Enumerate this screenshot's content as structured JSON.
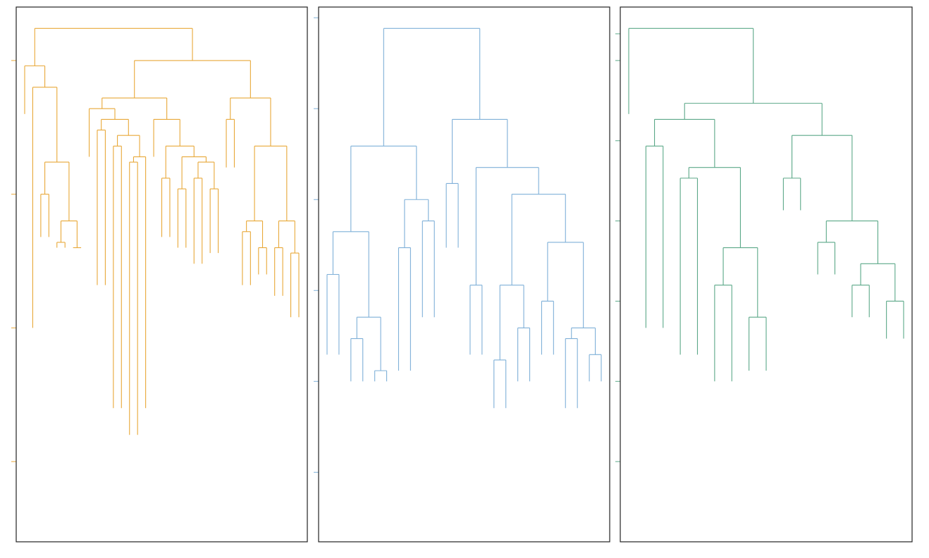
{
  "chart_data": [
    {
      "type": "dendrogram",
      "panel": 1,
      "color": "#E8A838",
      "title": "",
      "ylim": [
        0,
        1
      ],
      "y_ticks": [
        0.15,
        0.4,
        0.65,
        0.9
      ],
      "tick_labels_visible": false,
      "root": {
        "h": 0.96,
        "c": [
          {
            "h": 0.89,
            "c": [
              {
                "l": 0.8
              },
              {
                "h": 0.85,
                "c": [
                  {
                    "l": 0.4
                  },
                  {
                    "h": 0.71,
                    "c": [
                      {
                        "h": 0.65,
                        "c": [
                          {
                            "l": 0.57
                          },
                          {
                            "l": 0.57
                          }
                        ]
                      },
                      {
                        "h": 0.6,
                        "c": [
                          {
                            "h": 0.56,
                            "c": [
                              {
                                "l": 0.55
                              },
                              {
                                "l": 0.55
                              }
                            ]
                          },
                          {
                            "h": 0.55,
                            "c": [
                              {
                                "l": 0.55
                              },
                              {
                                "l": 0.55
                              }
                            ]
                          }
                        ]
                      }
                    ]
                  }
                ]
              }
            ]
          },
          {
            "h": 0.9,
            "c": [
              {
                "h": 0.83,
                "c": [
                  {
                    "h": 0.81,
                    "c": [
                      {
                        "l": 0.72
                      },
                      {
                        "h": 0.79,
                        "c": [
                          {
                            "h": 0.77,
                            "c": [
                              {
                                "l": 0.48
                              },
                              {
                                "l": 0.48
                              }
                            ]
                          },
                          {
                            "h": 0.76,
                            "c": [
                              {
                                "h": 0.74,
                                "c": [
                                  {
                                    "l": 0.25
                                  },
                                  {
                                    "l": 0.25
                                  }
                                ]
                              },
                              {
                                "h": 0.72,
                                "c": [
                                  {
                                    "h": 0.71,
                                    "c": [
                                      {
                                        "l": 0.2
                                      },
                                      {
                                        "l": 0.2
                                      }
                                    ]
                                  },
                                  {
                                    "l": 0.25
                                  }
                                ]
                              }
                            ]
                          }
                        ]
                      }
                    ]
                  },
                  {
                    "h": 0.79,
                    "c": [
                      {
                        "l": 0.72
                      },
                      {
                        "h": 0.74,
                        "c": [
                          {
                            "h": 0.68,
                            "c": [
                              {
                                "l": 0.57
                              },
                              {
                                "l": 0.57
                              }
                            ]
                          },
                          {
                            "h": 0.72,
                            "c": [
                              {
                                "h": 0.66,
                                "c": [
                                  {
                                    "l": 0.55
                                  },
                                  {
                                    "l": 0.55
                                  }
                                ]
                              },
                              {
                                "h": 0.71,
                                "c": [
                                  {
                                    "h": 0.68,
                                    "c": [
                                      {
                                        "l": 0.52
                                      },
                                      {
                                        "l": 0.52
                                      }
                                    ]
                                  },
                                  {
                                    "h": 0.66,
                                    "c": [
                                      {
                                        "l": 0.54
                                      },
                                      {
                                        "l": 0.54
                                      }
                                    ]
                                  }
                                ]
                              }
                            ]
                          }
                        ]
                      }
                    ]
                  }
                ]
              },
              {
                "h": 0.83,
                "c": [
                  {
                    "h": 0.79,
                    "c": [
                      {
                        "l": 0.7
                      },
                      {
                        "l": 0.7
                      }
                    ]
                  },
                  {
                    "h": 0.74,
                    "c": [
                      {
                        "h": 0.6,
                        "c": [
                          {
                            "h": 0.58,
                            "c": [
                              {
                                "l": 0.48
                              },
                              {
                                "l": 0.48
                              }
                            ]
                          },
                          {
                            "h": 0.55,
                            "c": [
                              {
                                "l": 0.5
                              },
                              {
                                "l": 0.5
                              }
                            ]
                          }
                        ]
                      },
                      {
                        "h": 0.6,
                        "c": [
                          {
                            "h": 0.55,
                            "c": [
                              {
                                "l": 0.46
                              },
                              {
                                "l": 0.46
                              }
                            ]
                          },
                          {
                            "h": 0.54,
                            "c": [
                              {
                                "l": 0.42
                              },
                              {
                                "l": 0.42
                              }
                            ]
                          }
                        ]
                      }
                    ]
                  }
                ]
              }
            ]
          }
        ]
      }
    },
    {
      "type": "dendrogram",
      "panel": 2,
      "color": "#7FB0D8",
      "title": "",
      "ylim": [
        0,
        1
      ],
      "y_ticks": [
        0.13,
        0.3,
        0.47,
        0.64,
        0.81,
        0.98
      ],
      "tick_labels_visible": false,
      "root": {
        "h": 0.96,
        "c": [
          {
            "h": 0.74,
            "c": [
              {
                "h": 0.58,
                "c": [
                  {
                    "h": 0.5,
                    "c": [
                      {
                        "l": 0.35
                      },
                      {
                        "l": 0.35
                      }
                    ]
                  },
                  {
                    "h": 0.42,
                    "c": [
                      {
                        "h": 0.38,
                        "c": [
                          {
                            "l": 0.3
                          },
                          {
                            "l": 0.3
                          }
                        ]
                      },
                      {
                        "h": 0.32,
                        "c": [
                          {
                            "l": 0.3
                          },
                          {
                            "l": 0.3
                          }
                        ]
                      }
                    ]
                  }
                ]
              },
              {
                "h": 0.64,
                "c": [
                  {
                    "h": 0.55,
                    "c": [
                      {
                        "l": 0.32
                      },
                      {
                        "l": 0.32
                      }
                    ]
                  },
                  {
                    "h": 0.6,
                    "c": [
                      {
                        "l": 0.42
                      },
                      {
                        "l": 0.42
                      }
                    ]
                  }
                ]
              }
            ]
          },
          {
            "h": 0.79,
            "c": [
              {
                "h": 0.67,
                "c": [
                  {
                    "l": 0.55
                  },
                  {
                    "l": 0.55
                  }
                ]
              },
              {
                "h": 0.7,
                "c": [
                  {
                    "h": 0.48,
                    "c": [
                      {
                        "l": 0.35
                      },
                      {
                        "l": 0.35
                      }
                    ]
                  },
                  {
                    "h": 0.65,
                    "c": [
                      {
                        "h": 0.48,
                        "c": [
                          {
                            "h": 0.34,
                            "c": [
                              {
                                "l": 0.25
                              },
                              {
                                "l": 0.25
                              }
                            ]
                          },
                          {
                            "h": 0.4,
                            "c": [
                              {
                                "l": 0.3
                              },
                              {
                                "l": 0.3
                              }
                            ]
                          }
                        ]
                      },
                      {
                        "h": 0.56,
                        "c": [
                          {
                            "h": 0.45,
                            "c": [
                              {
                                "l": 0.35
                              },
                              {
                                "l": 0.35
                              }
                            ]
                          },
                          {
                            "h": 0.4,
                            "c": [
                              {
                                "h": 0.38,
                                "c": [
                                  {
                                    "l": 0.25
                                  },
                                  {
                                    "l": 0.25
                                  }
                                ]
                              },
                              {
                                "h": 0.35,
                                "c": [
                                  {
                                    "l": 0.3
                                  },
                                  {
                                    "l": 0.3
                                  }
                                ]
                              }
                            ]
                          }
                        ]
                      }
                    ]
                  }
                ]
              }
            ]
          }
        ]
      }
    },
    {
      "type": "dendrogram",
      "panel": 3,
      "color": "#5BA888",
      "title": "",
      "ylim": [
        0,
        1
      ],
      "y_ticks": [
        0.15,
        0.3,
        0.45,
        0.6,
        0.75,
        0.9,
        0.95
      ],
      "tick_labels_visible": false,
      "root": {
        "h": 0.96,
        "c": [
          {
            "l": 0.8
          },
          {
            "h": 0.82,
            "c": [
              {
                "h": 0.79,
                "c": [
                  {
                    "h": 0.74,
                    "c": [
                      {
                        "l": 0.4
                      },
                      {
                        "l": 0.4
                      }
                    ]
                  },
                  {
                    "h": 0.7,
                    "c": [
                      {
                        "h": 0.68,
                        "c": [
                          {
                            "l": 0.35
                          },
                          {
                            "l": 0.35
                          }
                        ]
                      },
                      {
                        "h": 0.55,
                        "c": [
                          {
                            "h": 0.48,
                            "c": [
                              {
                                "l": 0.3
                              },
                              {
                                "l": 0.3
                              }
                            ]
                          },
                          {
                            "h": 0.42,
                            "c": [
                              {
                                "l": 0.32
                              },
                              {
                                "l": 0.32
                              }
                            ]
                          }
                        ]
                      }
                    ]
                  }
                ]
              },
              {
                "h": 0.76,
                "c": [
                  {
                    "h": 0.68,
                    "c": [
                      {
                        "l": 0.62
                      },
                      {
                        "l": 0.62
                      }
                    ]
                  },
                  {
                    "h": 0.6,
                    "c": [
                      {
                        "h": 0.56,
                        "c": [
                          {
                            "l": 0.5
                          },
                          {
                            "l": 0.5
                          }
                        ]
                      },
                      {
                        "h": 0.52,
                        "c": [
                          {
                            "h": 0.48,
                            "c": [
                              {
                                "l": 0.42
                              },
                              {
                                "l": 0.42
                              }
                            ]
                          },
                          {
                            "h": 0.45,
                            "c": [
                              {
                                "l": 0.38
                              },
                              {
                                "l": 0.38
                              }
                            ]
                          }
                        ]
                      }
                    ]
                  }
                ]
              }
            ]
          }
        ]
      }
    }
  ]
}
